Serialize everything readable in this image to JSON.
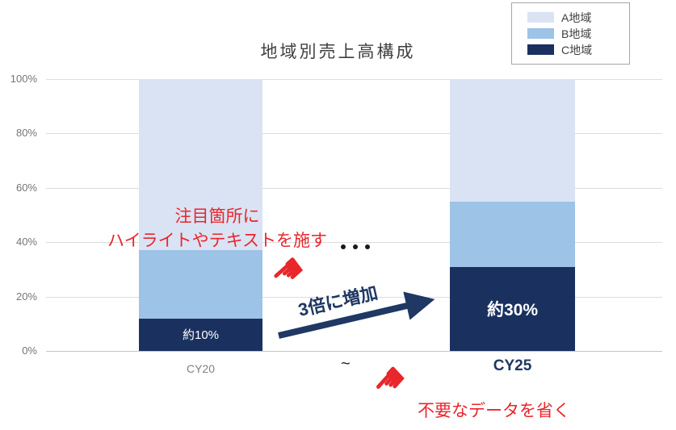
{
  "title": "地域別売上高構成",
  "legend": {
    "items": [
      {
        "label": "A地域",
        "color": "#dae3f3"
      },
      {
        "label": "B地域",
        "color": "#9dc3e6"
      },
      {
        "label": "C地域",
        "color": "#1a3160"
      }
    ]
  },
  "chart_data": {
    "type": "bar",
    "stacked": true,
    "title": "地域別売上高構成",
    "categories": [
      "CY20",
      "CY25"
    ],
    "series": [
      {
        "name": "A地域",
        "color": "#dae3f3",
        "values": [
          63,
          45
        ]
      },
      {
        "name": "B地域",
        "color": "#9dc3e6",
        "values": [
          25,
          24
        ]
      },
      {
        "name": "C地域",
        "color": "#1a3160",
        "values": [
          12,
          31
        ]
      }
    ],
    "inner_labels": [
      {
        "category": "CY20",
        "series": "C地域",
        "text": "約10%",
        "emphasis": false
      },
      {
        "category": "CY25",
        "series": "C地域",
        "text": "約30%",
        "emphasis": true
      }
    ],
    "ylim": [
      0,
      100
    ],
    "yticks": [
      "0%",
      "20%",
      "40%",
      "60%",
      "80%",
      "100%"
    ],
    "grid": true,
    "legend_position": "top-right"
  },
  "annotations": {
    "highlight_note_line1": "注目箇所に",
    "highlight_note_line2": "ハイライトやテキストを施す",
    "increase_note": "3倍に増加",
    "omit_note": "不要なデータを省く",
    "ellipsis": "・・・",
    "tilde": "~"
  },
  "icons": {
    "pointer_hand": "☚"
  },
  "colors": {
    "annotation_red": "#e8262b",
    "navy": "#1f3864",
    "gridline": "#dcdcdc",
    "axis_text": "#757575",
    "muted_category_text": "#808080"
  }
}
